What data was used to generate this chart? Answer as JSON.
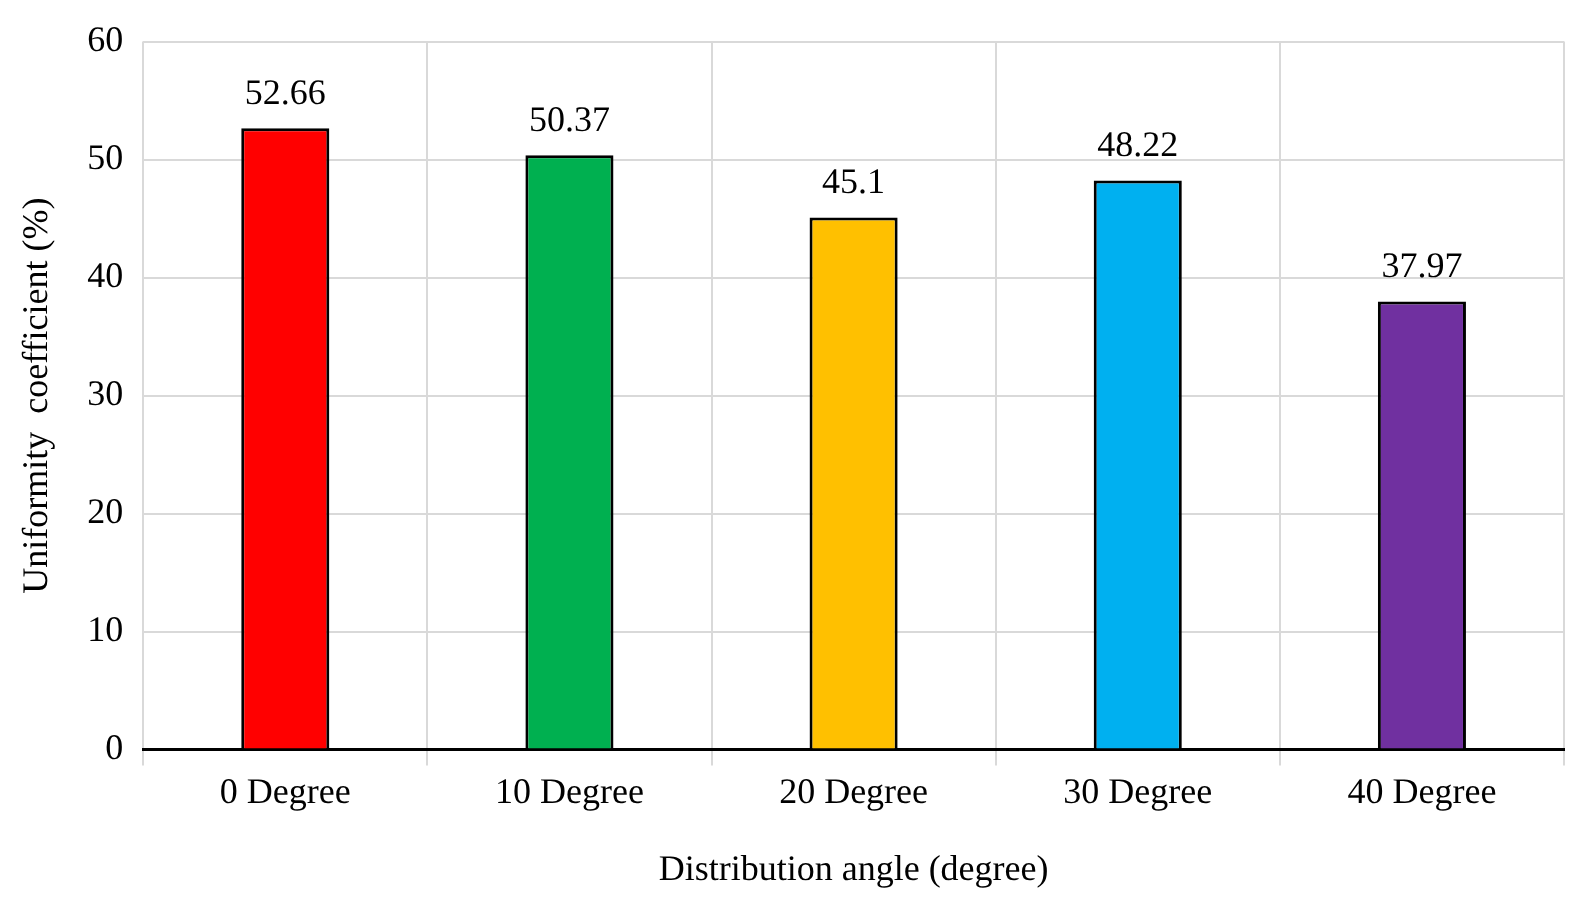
{
  "chart_data": {
    "type": "bar",
    "xlabel": "Distribution angle (degree)",
    "ylabel": "Uniformity  coefficient (%)",
    "categories": [
      "0 Degree",
      "10 Degree",
      "20 Degree",
      "30 Degree",
      "40 Degree"
    ],
    "values": [
      52.66,
      50.37,
      45.1,
      48.22,
      37.97
    ],
    "colors": [
      "#ff0000",
      "#00b050",
      "#ffc000",
      "#00b0f0",
      "#7030a0"
    ],
    "ylim": [
      0,
      60
    ],
    "yticks": [
      0,
      10,
      20,
      30,
      40,
      50,
      60
    ],
    "grid": true,
    "data_labels": true
  }
}
